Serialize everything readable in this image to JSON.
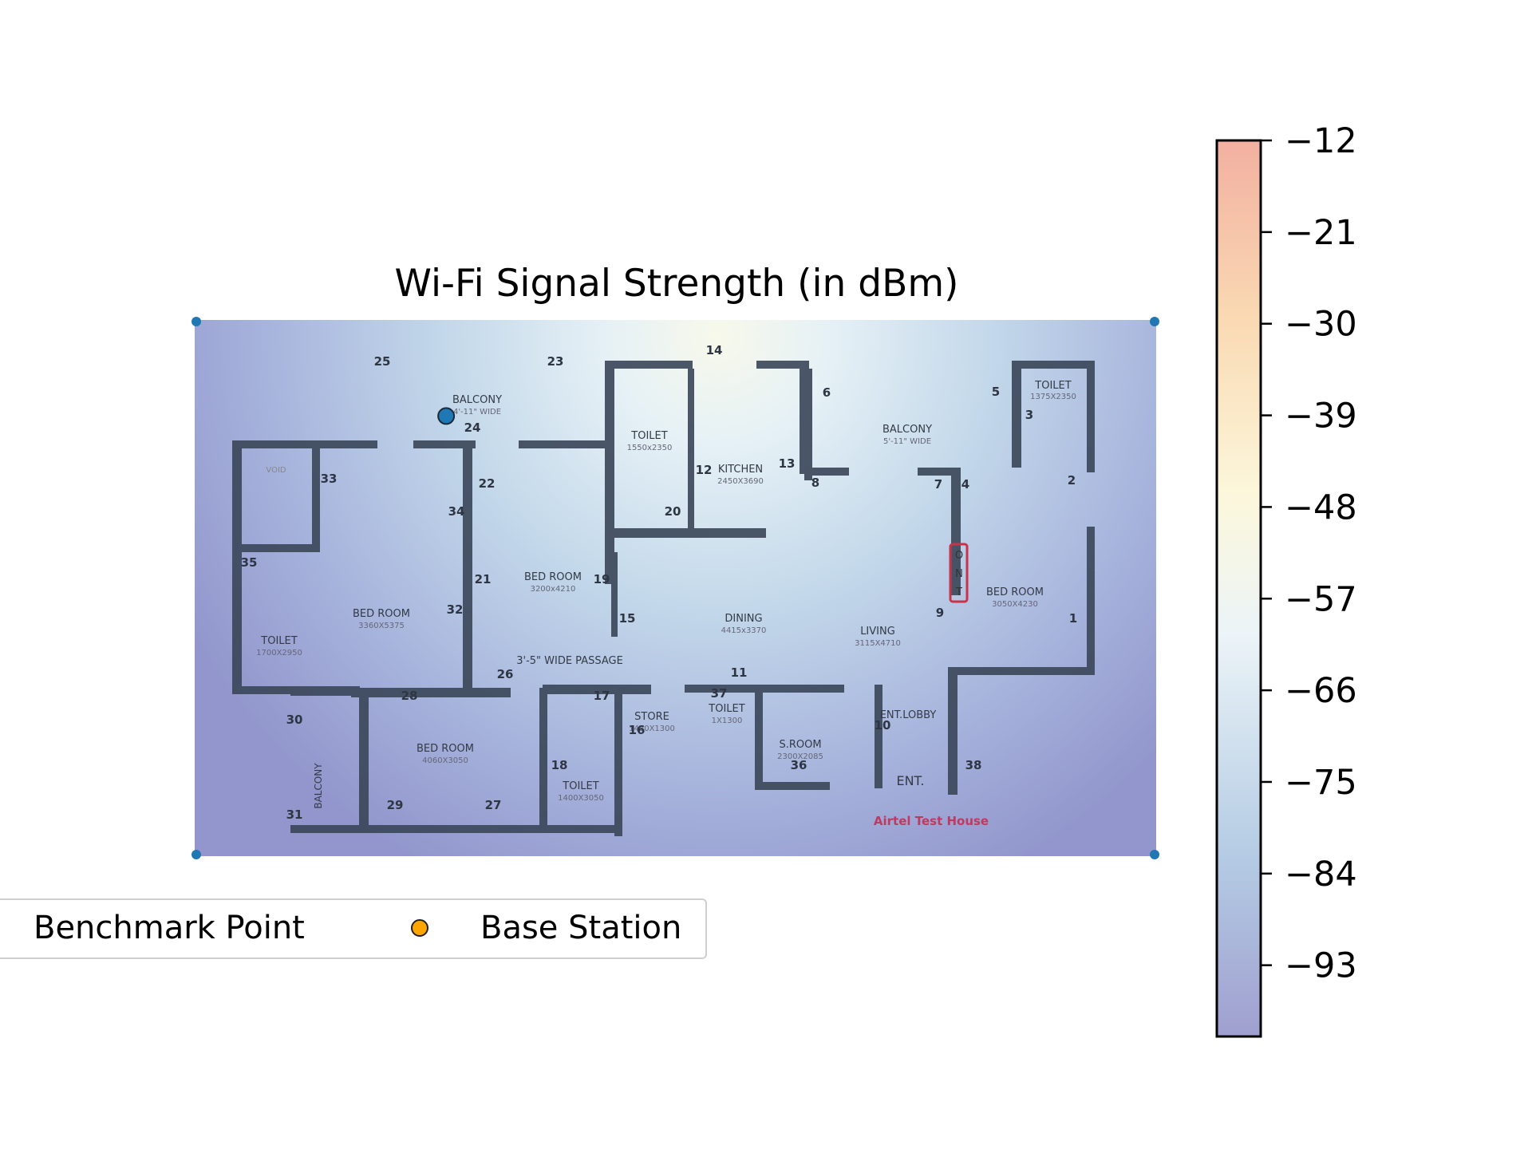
{
  "chart_data": {
    "type": "heatmap",
    "title": "Wi-Fi Signal Strength (in dBm)",
    "colorbar": {
      "range": [
        -100,
        -12
      ],
      "ticks": [
        -12,
        -21,
        -30,
        -39,
        -48,
        -57,
        -66,
        -75,
        -84,
        -93
      ],
      "colormap": [
        "#8f8ec7",
        "#a7c2df",
        "#e8f2f6",
        "#fbf6d6",
        "#f9d3a6",
        "#f0a290"
      ]
    },
    "base_station": {
      "x": 270,
      "y": 100,
      "color": "#1f77b4"
    },
    "legend": {
      "placement": "bottom-left",
      "entries": [
        {
          "label": "Benchmark Point",
          "marker": "none"
        },
        {
          "label": "Base Station",
          "marker": "circle",
          "color": "#ffa500"
        }
      ]
    }
  },
  "floorplan": {
    "caption": "Airtel Test House",
    "rooms": [
      {
        "name": "BALCONY",
        "dims": "4'-11\" WIDE"
      },
      {
        "name": "TOILET",
        "dims": "1550x2350"
      },
      {
        "name": "KITCHEN",
        "dims": "2450X3690"
      },
      {
        "name": "BALCONY",
        "dims": "5'-11\" WIDE"
      },
      {
        "name": "TOILET",
        "dims": "1375X2350"
      },
      {
        "name": "BED ROOM",
        "dims": "3200x4210"
      },
      {
        "name": "BED ROOM",
        "dims": "3360X5375"
      },
      {
        "name": "TOILET",
        "dims": "1700X2950"
      },
      {
        "name": "DINING",
        "dims": "4415x3370"
      },
      {
        "name": "LIVING",
        "dims": "3115X4710"
      },
      {
        "name": "BED ROOM",
        "dims": "3050X4230"
      },
      {
        "name": "3'-5\" WIDE PASSAGE",
        "dims": ""
      },
      {
        "name": "STORE",
        "dims": "1480X1300"
      },
      {
        "name": "TOILET",
        "dims": "1X1300"
      },
      {
        "name": "S.ROOM",
        "dims": "2300X2085"
      },
      {
        "name": "ENT.LOBBY",
        "dims": ""
      },
      {
        "name": "BED ROOM",
        "dims": "4060X3050"
      },
      {
        "name": "TOILET",
        "dims": "1400X3050"
      },
      {
        "name": "BALCONY",
        "dims": "4'-11\" WIDE"
      },
      {
        "name": "ENT.",
        "dims": ""
      }
    ],
    "points": [
      "1",
      "2",
      "3",
      "4",
      "5",
      "6",
      "7",
      "8",
      "9",
      "10",
      "11",
      "12",
      "13",
      "14",
      "15",
      "16",
      "17",
      "18",
      "19",
      "20",
      "21",
      "22",
      "23",
      "24",
      "25",
      "26",
      "27",
      "28",
      "29",
      "30",
      "31",
      "32",
      "33",
      "34",
      "35",
      "36",
      "37",
      "38"
    ],
    "ont_letters": [
      "O",
      "N",
      "T"
    ],
    "void_label": "VOID"
  }
}
